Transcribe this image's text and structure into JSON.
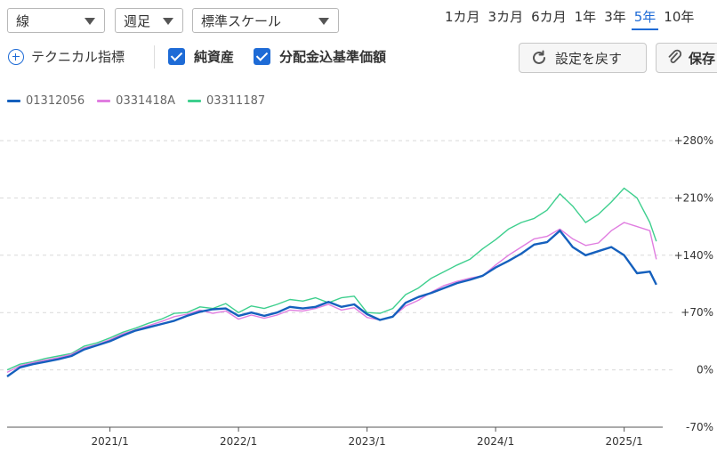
{
  "toolbar": {
    "chart_type": "線",
    "period": "週足",
    "scale": "標準スケール",
    "ranges": [
      {
        "label": "1カ月",
        "active": false
      },
      {
        "label": "3カ月",
        "active": false
      },
      {
        "label": "6カ月",
        "active": false
      },
      {
        "label": "1年",
        "active": false
      },
      {
        "label": "3年",
        "active": false
      },
      {
        "label": "5年",
        "active": true
      },
      {
        "label": "10年",
        "active": false
      }
    ]
  },
  "options": {
    "technical_label": "テクニカル指標",
    "net_assets_label": "純資産",
    "net_assets_checked": true,
    "nav_label": "分配金込基準価額",
    "nav_checked": true,
    "reset_label": "設定を戻す",
    "save_label": "保存"
  },
  "colors": {
    "accent": "#1e6bd6",
    "series1": "#1560bd",
    "series2": "#e07de0",
    "series3": "#3ecf8e"
  },
  "chart_data": {
    "type": "line",
    "xlabel": "",
    "ylabel": "",
    "ylim": [
      -70,
      280
    ],
    "y_ticks": [
      {
        "value": 280,
        "label": "+280%"
      },
      {
        "value": 210,
        "label": "+210%"
      },
      {
        "value": 140,
        "label": "+140%"
      },
      {
        "value": 70,
        "label": "+70%"
      },
      {
        "value": 0,
        "label": "0%"
      },
      {
        "value": -70,
        "label": "-70%"
      }
    ],
    "xlim": [
      2020.2,
      2025.3
    ],
    "x_ticks": [
      {
        "value": 2021.0,
        "label": "2021/1"
      },
      {
        "value": 2022.0,
        "label": "2022/1"
      },
      {
        "value": 2023.0,
        "label": "2023/1"
      },
      {
        "value": 2024.0,
        "label": "2024/1"
      },
      {
        "value": 2025.0,
        "label": "2025/1"
      }
    ],
    "grid": true,
    "legend_position": "top-left",
    "x": [
      2020.2,
      2020.3,
      2020.4,
      2020.5,
      2020.6,
      2020.7,
      2020.8,
      2020.9,
      2021.0,
      2021.1,
      2021.2,
      2021.3,
      2021.4,
      2021.5,
      2021.6,
      2021.7,
      2021.8,
      2021.9,
      2022.0,
      2022.1,
      2022.2,
      2022.3,
      2022.4,
      2022.5,
      2022.6,
      2022.7,
      2022.8,
      2022.9,
      2023.0,
      2023.1,
      2023.2,
      2023.3,
      2023.4,
      2023.5,
      2023.6,
      2023.7,
      2023.8,
      2023.9,
      2024.0,
      2024.1,
      2024.2,
      2024.3,
      2024.4,
      2024.5,
      2024.6,
      2024.7,
      2024.8,
      2024.9,
      2025.0,
      2025.1,
      2025.2,
      2025.25
    ],
    "series": [
      {
        "name": "01312056",
        "color": "#1560bd",
        "values": [
          -8,
          3,
          7,
          10,
          13,
          17,
          25,
          30,
          35,
          42,
          48,
          52,
          56,
          60,
          66,
          71,
          74,
          75,
          66,
          70,
          66,
          70,
          77,
          75,
          77,
          83,
          77,
          80,
          68,
          61,
          65,
          82,
          89,
          94,
          100,
          106,
          110,
          115,
          125,
          133,
          142,
          153,
          156,
          170,
          150,
          140,
          145,
          150,
          140,
          118,
          120,
          104
        ]
      },
      {
        "name": "0331418A",
        "color": "#e07de0",
        "values": [
          -3,
          5,
          9,
          12,
          15,
          19,
          27,
          31,
          37,
          44,
          49,
          54,
          59,
          65,
          68,
          73,
          69,
          72,
          62,
          67,
          63,
          67,
          73,
          72,
          75,
          80,
          73,
          76,
          64,
          61,
          65,
          78,
          85,
          95,
          103,
          108,
          112,
          115,
          128,
          140,
          150,
          160,
          163,
          172,
          160,
          152,
          155,
          170,
          180,
          175,
          170,
          135
        ]
      },
      {
        "name": "03311187",
        "color": "#3ecf8e",
        "values": [
          0,
          7,
          10,
          14,
          17,
          20,
          29,
          33,
          39,
          46,
          51,
          57,
          62,
          69,
          70,
          77,
          75,
          81,
          70,
          78,
          75,
          80,
          86,
          84,
          88,
          82,
          88,
          90,
          70,
          69,
          75,
          92,
          100,
          112,
          120,
          128,
          135,
          148,
          159,
          172,
          180,
          185,
          195,
          215,
          200,
          180,
          190,
          205,
          222,
          210,
          180,
          157
        ]
      }
    ]
  }
}
